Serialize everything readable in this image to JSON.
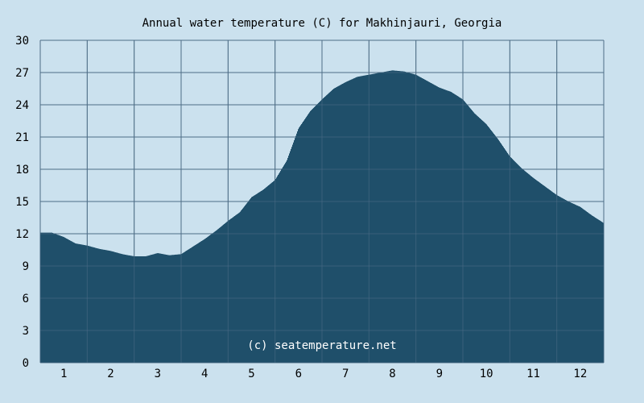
{
  "chart_data": {
    "type": "area",
    "title": "Annual water temperature (C) for Makhinjauri, Georgia",
    "xlabel": "",
    "ylabel": "",
    "x_tick_labels": [
      "1",
      "2",
      "3",
      "4",
      "5",
      "6",
      "7",
      "8",
      "9",
      "10",
      "11",
      "12"
    ],
    "y_tick_labels": [
      "0",
      "3",
      "6",
      "9",
      "12",
      "15",
      "18",
      "21",
      "24",
      "27",
      "30"
    ],
    "ylim": [
      0,
      30
    ],
    "xlim_months": [
      0.5,
      12.5
    ],
    "grid": true,
    "legend": "none",
    "x_months": [
      0.5,
      0.75,
      1.0,
      1.25,
      1.5,
      1.75,
      2.0,
      2.25,
      2.5,
      2.75,
      3.0,
      3.25,
      3.5,
      3.75,
      4.0,
      4.25,
      4.5,
      4.75,
      5.0,
      5.25,
      5.5,
      5.75,
      6.0,
      6.25,
      6.5,
      6.75,
      7.0,
      7.25,
      7.5,
      7.75,
      8.0,
      8.25,
      8.5,
      8.75,
      9.0,
      9.25,
      9.5,
      9.75,
      10.0,
      10.25,
      10.5,
      10.75,
      11.0,
      11.25,
      11.5,
      11.75,
      12.0,
      12.25,
      12.5
    ],
    "values": [
      12.1,
      12.1,
      11.7,
      11.1,
      10.9,
      10.6,
      10.4,
      10.1,
      9.9,
      9.9,
      10.2,
      10.0,
      10.1,
      10.8,
      11.5,
      12.3,
      13.2,
      14.0,
      15.4,
      16.1,
      17.0,
      18.8,
      21.8,
      23.4,
      24.5,
      25.5,
      26.1,
      26.6,
      26.8,
      27.0,
      27.2,
      27.1,
      26.8,
      26.2,
      25.6,
      25.2,
      24.5,
      23.2,
      22.2,
      20.8,
      19.2,
      18.1,
      17.2,
      16.4,
      15.6,
      15.0,
      14.5,
      13.7,
      13.0
    ],
    "colors": {
      "area": "#1f4f6a",
      "background": "#cbe1ee",
      "grid": "#4f6e86",
      "axis_text": "#000000",
      "watermark": "#ffffff"
    }
  },
  "watermark": "(c) seatemperature.net"
}
